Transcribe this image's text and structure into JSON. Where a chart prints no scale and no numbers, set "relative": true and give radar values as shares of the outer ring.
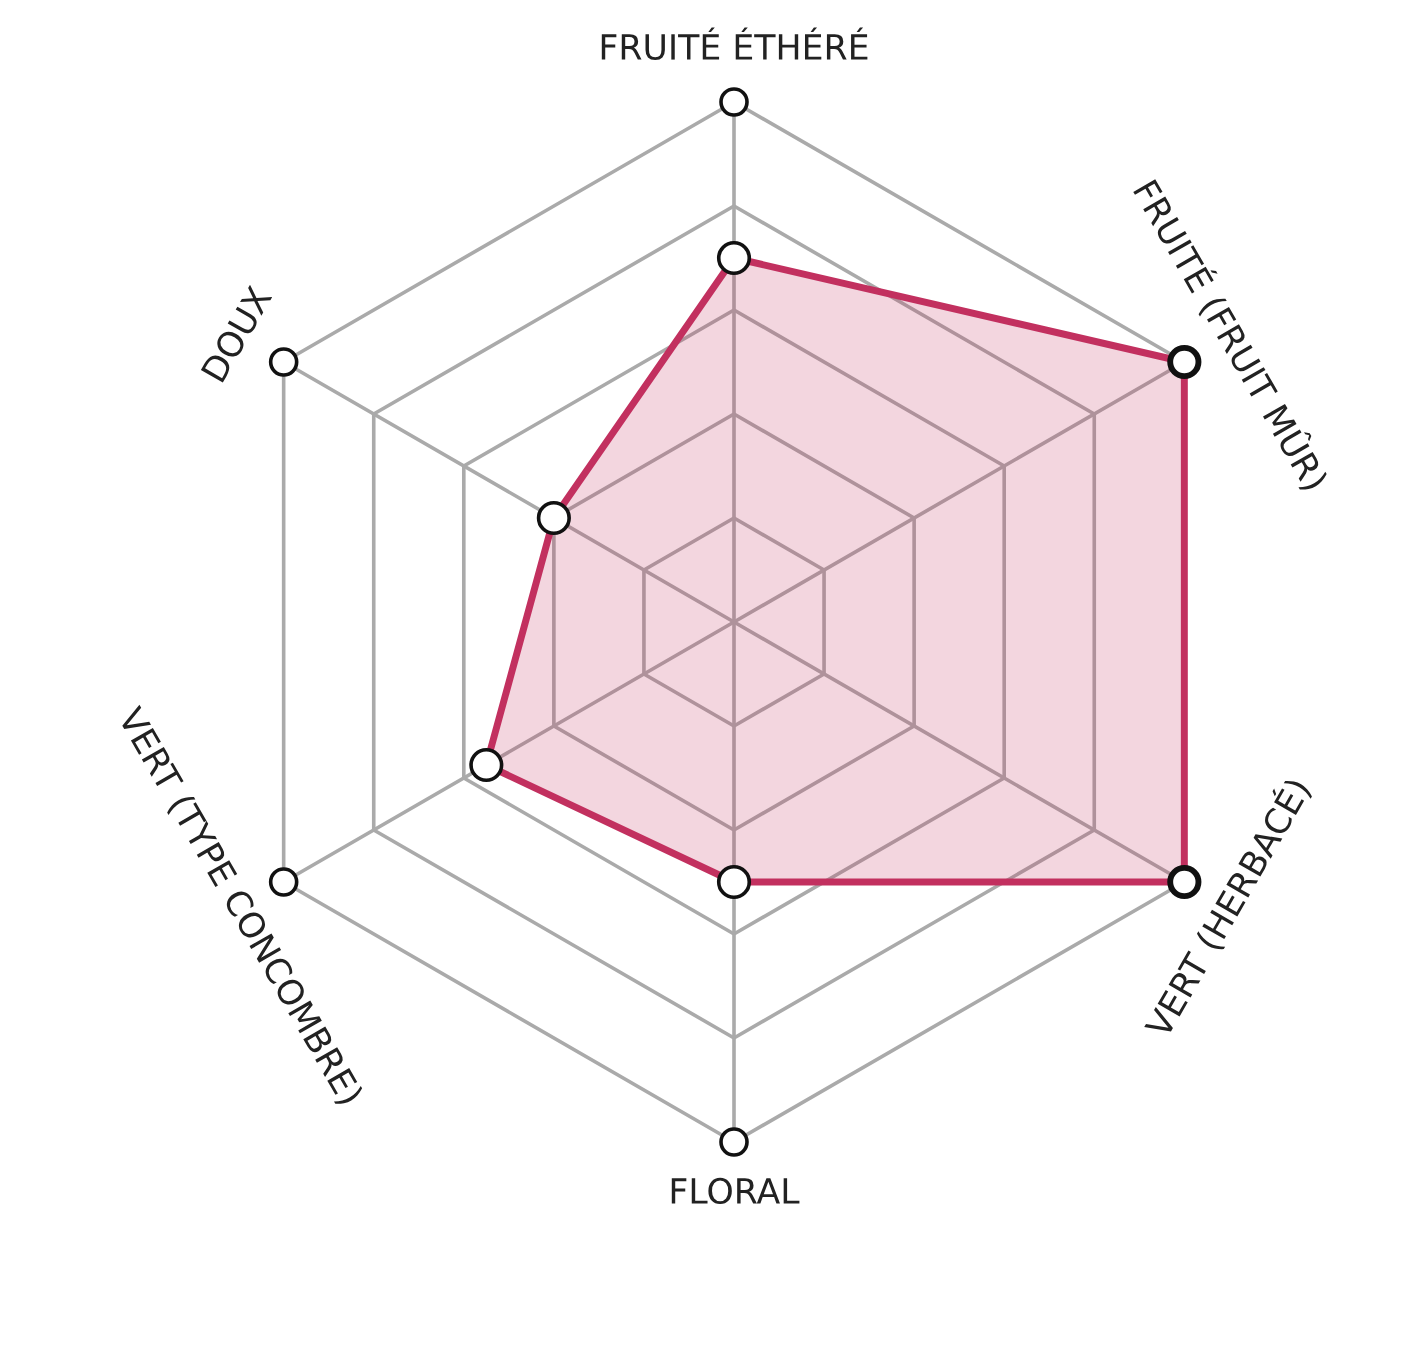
{
  "chart_data": {
    "type": "radar",
    "relative": true,
    "grid": true,
    "marker": "circle",
    "line_style": "solid",
    "categories": [
      "FRUITÉ ÉTHÉRÉ",
      "FRUITÉ (FRUIT MÛR)",
      "VERT (HERBACÉ)",
      "FLORAL",
      "VERT (TYPE CONCOMBRE)",
      "DOUX"
    ],
    "series": [
      {
        "color": "#c2305f",
        "values": [
          0.7,
          1,
          1,
          0.5,
          0.55,
          0.4
        ]
      }
    ]
  }
}
